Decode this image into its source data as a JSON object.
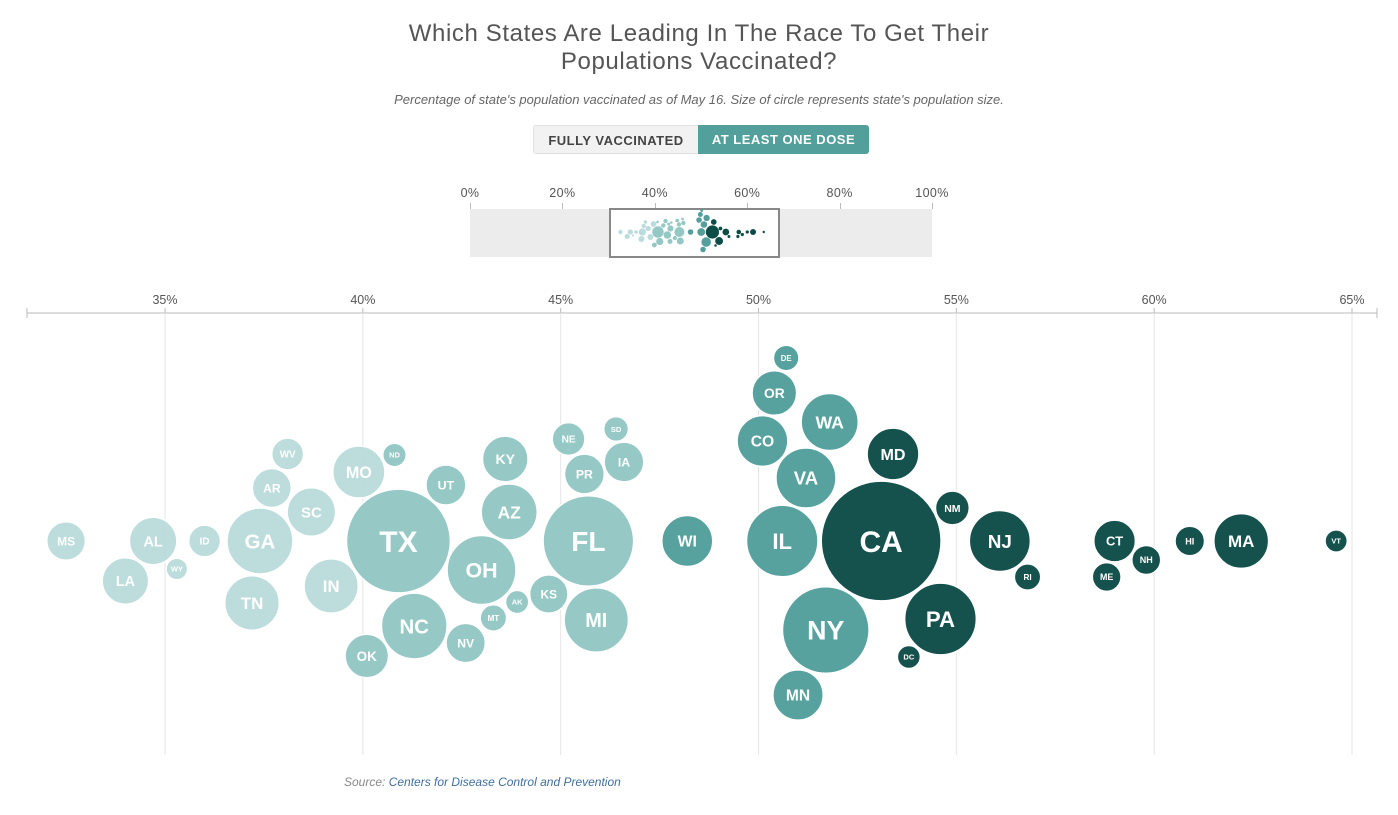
{
  "title_line1": "Which States Are Leading In The Race To Get Their",
  "title_line2": "Populations Vaccinated?",
  "subtitle": "Percentage of state's population vaccinated as of May 16. Size of circle represents state's population size.",
  "toggle": {
    "fully_label": "FULLY VACCINATED",
    "one_dose_label": "AT LEAST ONE DOSE",
    "active": "AT LEAST ONE DOSE"
  },
  "source_prefix": "Source:",
  "source_link": "Centers for Disease Control and Prevention",
  "colors": {
    "light": "#bbdcdb",
    "mid_light": "#93c8c4",
    "mid": "#529f9b",
    "dark": "#0e4c48",
    "toggle_active": "#529f9b"
  },
  "chart_data": [
    {
      "type": "scatter",
      "name": "overview-strip",
      "xlim": [
        0,
        100
      ],
      "ticks": [
        "0%",
        "20%",
        "40%",
        "60%",
        "80%",
        "100%"
      ],
      "tick_values": [
        0,
        20,
        40,
        60,
        80,
        100
      ],
      "window": [
        32,
        65
      ]
    },
    {
      "type": "scatter",
      "name": "beeswarm",
      "xlim": [
        31.5,
        66
      ],
      "ticks": [
        "35%",
        "40%",
        "45%",
        "50%",
        "55%",
        "60%",
        "65%"
      ],
      "tick_values": [
        35,
        40,
        45,
        50,
        55,
        60,
        65
      ],
      "size_encodes": "state population",
      "points": [
        {
          "label": "MS",
          "x": 32.5,
          "pop": 2.96
        },
        {
          "label": "LA",
          "x": 34.0,
          "pop": 4.65
        },
        {
          "label": "AL",
          "x": 34.7,
          "pop": 4.9
        },
        {
          "label": "WY",
          "x": 35.3,
          "pop": 0.58
        },
        {
          "label": "ID",
          "x": 36.0,
          "pop": 1.79
        },
        {
          "label": "GA",
          "x": 37.4,
          "pop": 10.6
        },
        {
          "label": "TN",
          "x": 37.2,
          "pop": 6.83
        },
        {
          "label": "WV",
          "x": 38.1,
          "pop": 1.79
        },
        {
          "label": "AR",
          "x": 37.7,
          "pop": 3.02
        },
        {
          "label": "SC",
          "x": 38.7,
          "pop": 5.15
        },
        {
          "label": "IN",
          "x": 39.2,
          "pop": 6.73
        },
        {
          "label": "MO",
          "x": 39.9,
          "pop": 6.14
        },
        {
          "label": "OK",
          "x": 40.1,
          "pop": 3.96
        },
        {
          "label": "ND",
          "x": 40.8,
          "pop": 0.76
        },
        {
          "label": "TX",
          "x": 40.9,
          "pop": 29.0
        },
        {
          "label": "NC",
          "x": 41.3,
          "pop": 10.5
        },
        {
          "label": "UT",
          "x": 42.1,
          "pop": 3.21
        },
        {
          "label": "NV",
          "x": 42.6,
          "pop": 3.08
        },
        {
          "label": "OH",
          "x": 43.0,
          "pop": 11.7
        },
        {
          "label": "MT",
          "x": 43.3,
          "pop": 1.07
        },
        {
          "label": "AK",
          "x": 43.9,
          "pop": 0.73
        },
        {
          "label": "AZ",
          "x": 43.7,
          "pop": 7.28
        },
        {
          "label": "KY",
          "x": 43.6,
          "pop": 4.47
        },
        {
          "label": "KS",
          "x": 44.7,
          "pop": 2.91
        },
        {
          "label": "NE",
          "x": 45.2,
          "pop": 1.93
        },
        {
          "label": "PR",
          "x": 45.6,
          "pop": 3.19
        },
        {
          "label": "FL",
          "x": 45.7,
          "pop": 21.5
        },
        {
          "label": "MI",
          "x": 45.9,
          "pop": 9.99
        },
        {
          "label": "SD",
          "x": 46.4,
          "pop": 0.88
        },
        {
          "label": "IA",
          "x": 46.6,
          "pop": 3.16
        },
        {
          "label": "WI",
          "x": 48.2,
          "pop": 5.82
        },
        {
          "label": "CO",
          "x": 50.1,
          "pop": 5.76
        },
        {
          "label": "IL",
          "x": 50.6,
          "pop": 12.7
        },
        {
          "label": "DE",
          "x": 50.7,
          "pop": 0.97
        },
        {
          "label": "OR",
          "x": 50.4,
          "pop": 4.22
        },
        {
          "label": "MN",
          "x": 51.0,
          "pop": 5.64
        },
        {
          "label": "VA",
          "x": 51.2,
          "pop": 8.54
        },
        {
          "label": "WA",
          "x": 51.8,
          "pop": 7.61
        },
        {
          "label": "NY",
          "x": 51.7,
          "pop": 19.5
        },
        {
          "label": "CA",
          "x": 53.1,
          "pop": 39.5
        },
        {
          "label": "MD",
          "x": 53.4,
          "pop": 6.05
        },
        {
          "label": "DC",
          "x": 53.8,
          "pop": 0.71
        },
        {
          "label": "NM",
          "x": 54.9,
          "pop": 2.1
        },
        {
          "label": "PA",
          "x": 54.6,
          "pop": 12.8
        },
        {
          "label": "NJ",
          "x": 56.1,
          "pop": 8.88
        },
        {
          "label": "RI",
          "x": 56.8,
          "pop": 1.06
        },
        {
          "label": "ME",
          "x": 58.8,
          "pop": 1.36
        },
        {
          "label": "CT",
          "x": 59.0,
          "pop": 3.57
        },
        {
          "label": "NH",
          "x": 59.8,
          "pop": 1.38
        },
        {
          "label": "HI",
          "x": 60.9,
          "pop": 1.46
        },
        {
          "label": "MA",
          "x": 62.2,
          "pop": 6.89
        },
        {
          "label": "VT",
          "x": 64.6,
          "pop": 0.64
        }
      ]
    }
  ]
}
